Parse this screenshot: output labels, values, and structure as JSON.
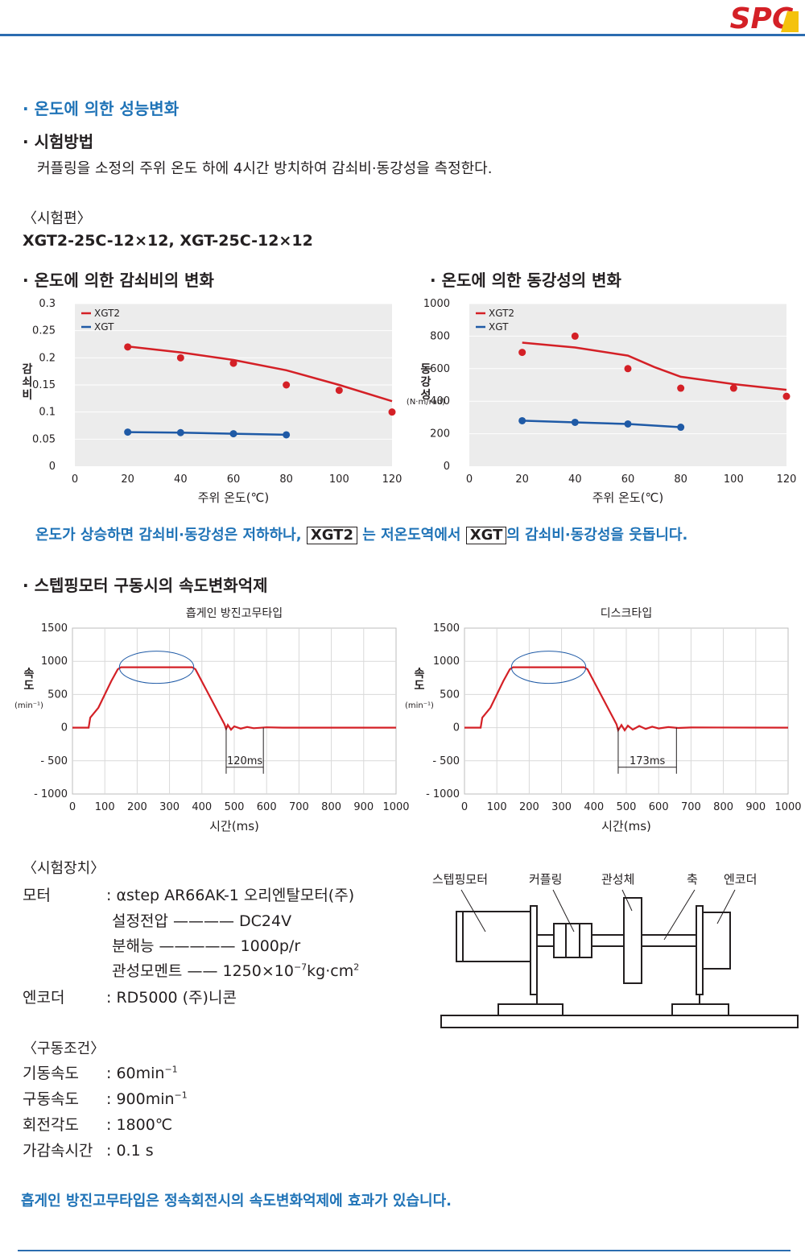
{
  "header": {
    "logo_text": "SPC"
  },
  "section1": {
    "title": "온도에 의한 성능변화",
    "method_title": "시험방법",
    "method_text": "커플링을 소정의 주위 온도 하에 4시간 방치하여 감쇠비·동강성을 측정한다.",
    "sample_label": "〈시험편〉",
    "sample_models": "XGT2-25C-12×12, XGT-25C-12×12"
  },
  "charts_temp": {
    "damping_title": "온도에 의한 감쇠비의 변화",
    "stiffness_title": "온도에 의한 동강성의 변화"
  },
  "chart_data": [
    {
      "type": "line",
      "title": "온도에 의한 감쇠비의 변화",
      "xlabel": "주위 온도(℃)",
      "ylabel": "감쇠비",
      "xlim": [
        0,
        120
      ],
      "ylim": [
        0,
        0.3
      ],
      "x_ticks": [
        "0",
        "20",
        "40",
        "60",
        "80",
        "100",
        "120"
      ],
      "y_ticks": [
        "0",
        "0.05",
        "0.1",
        "0.15",
        "0.2",
        "0.25",
        "0.3"
      ],
      "legend_position": "top-left",
      "series": [
        {
          "name": "XGT2",
          "color": "#d42026",
          "points": [
            [
              20,
              0.22
            ],
            [
              40,
              0.2
            ],
            [
              60,
              0.19
            ],
            [
              80,
              0.15
            ],
            [
              100,
              0.14
            ],
            [
              120,
              0.1
            ]
          ],
          "trend": [
            [
              20,
              0.221
            ],
            [
              40,
              0.21
            ],
            [
              60,
              0.196
            ],
            [
              80,
              0.177
            ],
            [
              100,
              0.15
            ],
            [
              120,
              0.12
            ]
          ]
        },
        {
          "name": "XGT",
          "color": "#1f5aa6",
          "points": [
            [
              20,
              0.063
            ],
            [
              40,
              0.062
            ],
            [
              60,
              0.06
            ],
            [
              80,
              0.058
            ]
          ]
        }
      ]
    },
    {
      "type": "line",
      "title": "온도에 의한 동강성의 변화",
      "xlabel": "주위 온도(℃)",
      "ylabel": "동강성",
      "yunit": "(N·m/rad)",
      "xlim": [
        0,
        120
      ],
      "ylim": [
        0,
        1000
      ],
      "x_ticks": [
        "0",
        "20",
        "40",
        "60",
        "80",
        "100",
        "120"
      ],
      "y_ticks": [
        "0",
        "200",
        "400",
        "600",
        "800",
        "1000"
      ],
      "legend_position": "top-left",
      "series": [
        {
          "name": "XGT2",
          "color": "#d42026",
          "points": [
            [
              20,
              700
            ],
            [
              40,
              800
            ],
            [
              60,
              600
            ],
            [
              80,
              480
            ],
            [
              100,
              480
            ],
            [
              120,
              430
            ]
          ],
          "trend": [
            [
              20,
              760
            ],
            [
              40,
              730
            ],
            [
              60,
              680
            ],
            [
              70,
              610
            ],
            [
              80,
              550
            ],
            [
              100,
              505
            ],
            [
              120,
              470
            ]
          ]
        },
        {
          "name": "XGT",
          "color": "#1f5aa6",
          "points": [
            [
              20,
              280
            ],
            [
              40,
              270
            ],
            [
              60,
              260
            ],
            [
              80,
              240
            ]
          ]
        }
      ]
    },
    {
      "type": "line",
      "title": "흡게인 방진고무타입",
      "xlabel": "시간(ms)",
      "ylabel": "속도",
      "yunit": "(min⁻¹)",
      "xlim": [
        0,
        1000
      ],
      "ylim": [
        -1000,
        1500
      ],
      "x_ticks": [
        "0",
        "100",
        "200",
        "300",
        "400",
        "500",
        "600",
        "700",
        "800",
        "900",
        "1000"
      ],
      "y_ticks": [
        "- 1000",
        "- 500",
        "0",
        "500",
        "1000",
        "1500"
      ],
      "annotation": "120ms",
      "annotation_range": [
        475,
        590
      ],
      "series": [
        {
          "name": "",
          "color": "#d42026",
          "points": [
            [
              0,
              0
            ],
            [
              50,
              0
            ],
            [
              55,
              150
            ],
            [
              80,
              300
            ],
            [
              100,
              500
            ],
            [
              120,
              700
            ],
            [
              140,
              880
            ],
            [
              150,
              910
            ],
            [
              370,
              910
            ],
            [
              380,
              880
            ],
            [
              470,
              50
            ],
            [
              475,
              -20
            ],
            [
              480,
              40
            ],
            [
              490,
              -30
            ],
            [
              500,
              20
            ],
            [
              520,
              -15
            ],
            [
              540,
              10
            ],
            [
              560,
              -8
            ],
            [
              600,
              5
            ],
            [
              650,
              0
            ],
            [
              1000,
              0
            ]
          ]
        }
      ]
    },
    {
      "type": "line",
      "title": "디스크타입",
      "xlabel": "시간(ms)",
      "ylabel": "속도",
      "yunit": "(min⁻¹)",
      "xlim": [
        0,
        1000
      ],
      "ylim": [
        -1000,
        1500
      ],
      "x_ticks": [
        "0",
        "100",
        "200",
        "300",
        "400",
        "500",
        "600",
        "700",
        "800",
        "900",
        "1000"
      ],
      "y_ticks": [
        "- 1000",
        "- 500",
        "0",
        "500",
        "1000",
        "1500"
      ],
      "annotation": "173ms",
      "annotation_range": [
        475,
        655
      ],
      "series": [
        {
          "name": "",
          "color": "#d42026",
          "points": [
            [
              0,
              0
            ],
            [
              50,
              0
            ],
            [
              55,
              150
            ],
            [
              80,
              300
            ],
            [
              100,
              500
            ],
            [
              120,
              700
            ],
            [
              140,
              880
            ],
            [
              150,
              910
            ],
            [
              370,
              910
            ],
            [
              380,
              880
            ],
            [
              470,
              50
            ],
            [
              475,
              -40
            ],
            [
              485,
              40
            ],
            [
              495,
              -40
            ],
            [
              505,
              30
            ],
            [
              520,
              -30
            ],
            [
              540,
              25
            ],
            [
              560,
              -20
            ],
            [
              580,
              15
            ],
            [
              600,
              -12
            ],
            [
              630,
              8
            ],
            [
              660,
              -5
            ],
            [
              700,
              3
            ],
            [
              1000,
              0
            ]
          ]
        }
      ]
    }
  ],
  "conclusion1": {
    "part1": "온도가 상승하면 감쇠비·동강성은 저하하나,",
    "box1": "XGT2",
    "part2": "는 저온도역에서",
    "box2": "XGT",
    "part3": "의 감쇠비·동강성을 웃돕니다."
  },
  "section2": {
    "title": "스텝핑모터 구동시의 속도변화억제"
  },
  "apparatus": {
    "label": "〈시험장치〉",
    "motor_label": "모터",
    "motor_value": ": αstep AR66AK-1 오리엔탈모터(주)",
    "voltage": "설정전압 ———— DC24V",
    "resolution": "분해능 ————— 1000p/r",
    "inertia_prefix": "관성모멘트 —— 1250×10",
    "inertia_exp": "−7",
    "inertia_unit": "kg·cm",
    "inertia_unit_exp": "2",
    "encoder_label": "엔코더",
    "encoder_value": ": RD5000 (주)니콘"
  },
  "diagram": {
    "labels": [
      "스텝핑모터",
      "커플링",
      "관성체",
      "축",
      "엔코더"
    ]
  },
  "drive": {
    "label": "〈구동조건〉",
    "rows": [
      {
        "k": "기동속도",
        "v": ": 60min",
        "sup": "−1"
      },
      {
        "k": "구동속도",
        "v": ": 900min",
        "sup": "−1"
      },
      {
        "k": "회전각도",
        "v": ": 1800℃",
        "sup": ""
      },
      {
        "k": "가감속시간",
        "v": ": 0.1 s",
        "sup": ""
      }
    ]
  },
  "conclusion2": "흡게인 방진고무타입은 정속회전시의 속도변화억제에 효과가 있습니다."
}
